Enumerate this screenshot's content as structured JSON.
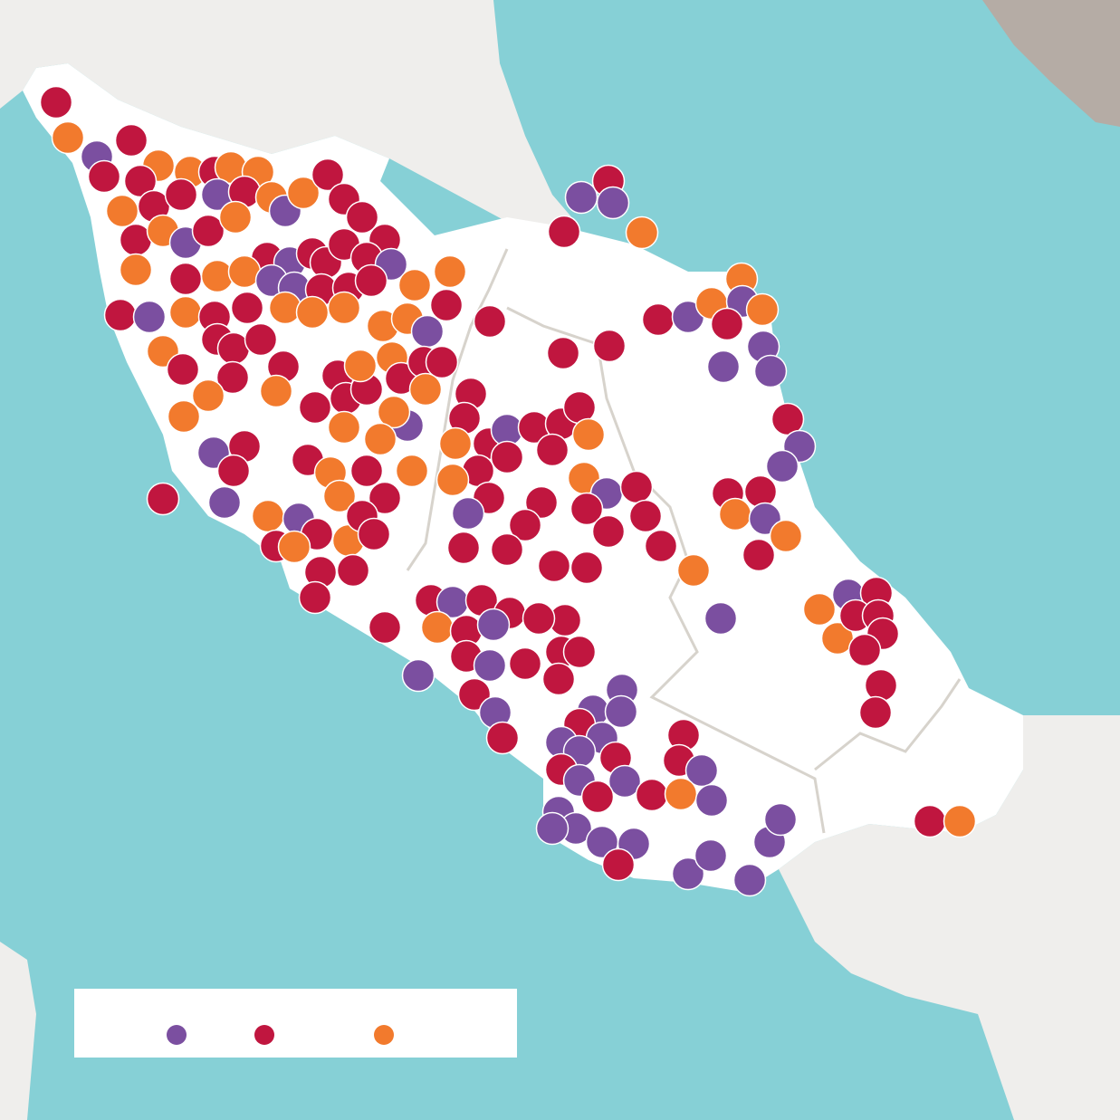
{
  "legend": {
    "colors": [
      "#7b4fa0",
      "#c0163f",
      "#f27a2d"
    ]
  }
}
